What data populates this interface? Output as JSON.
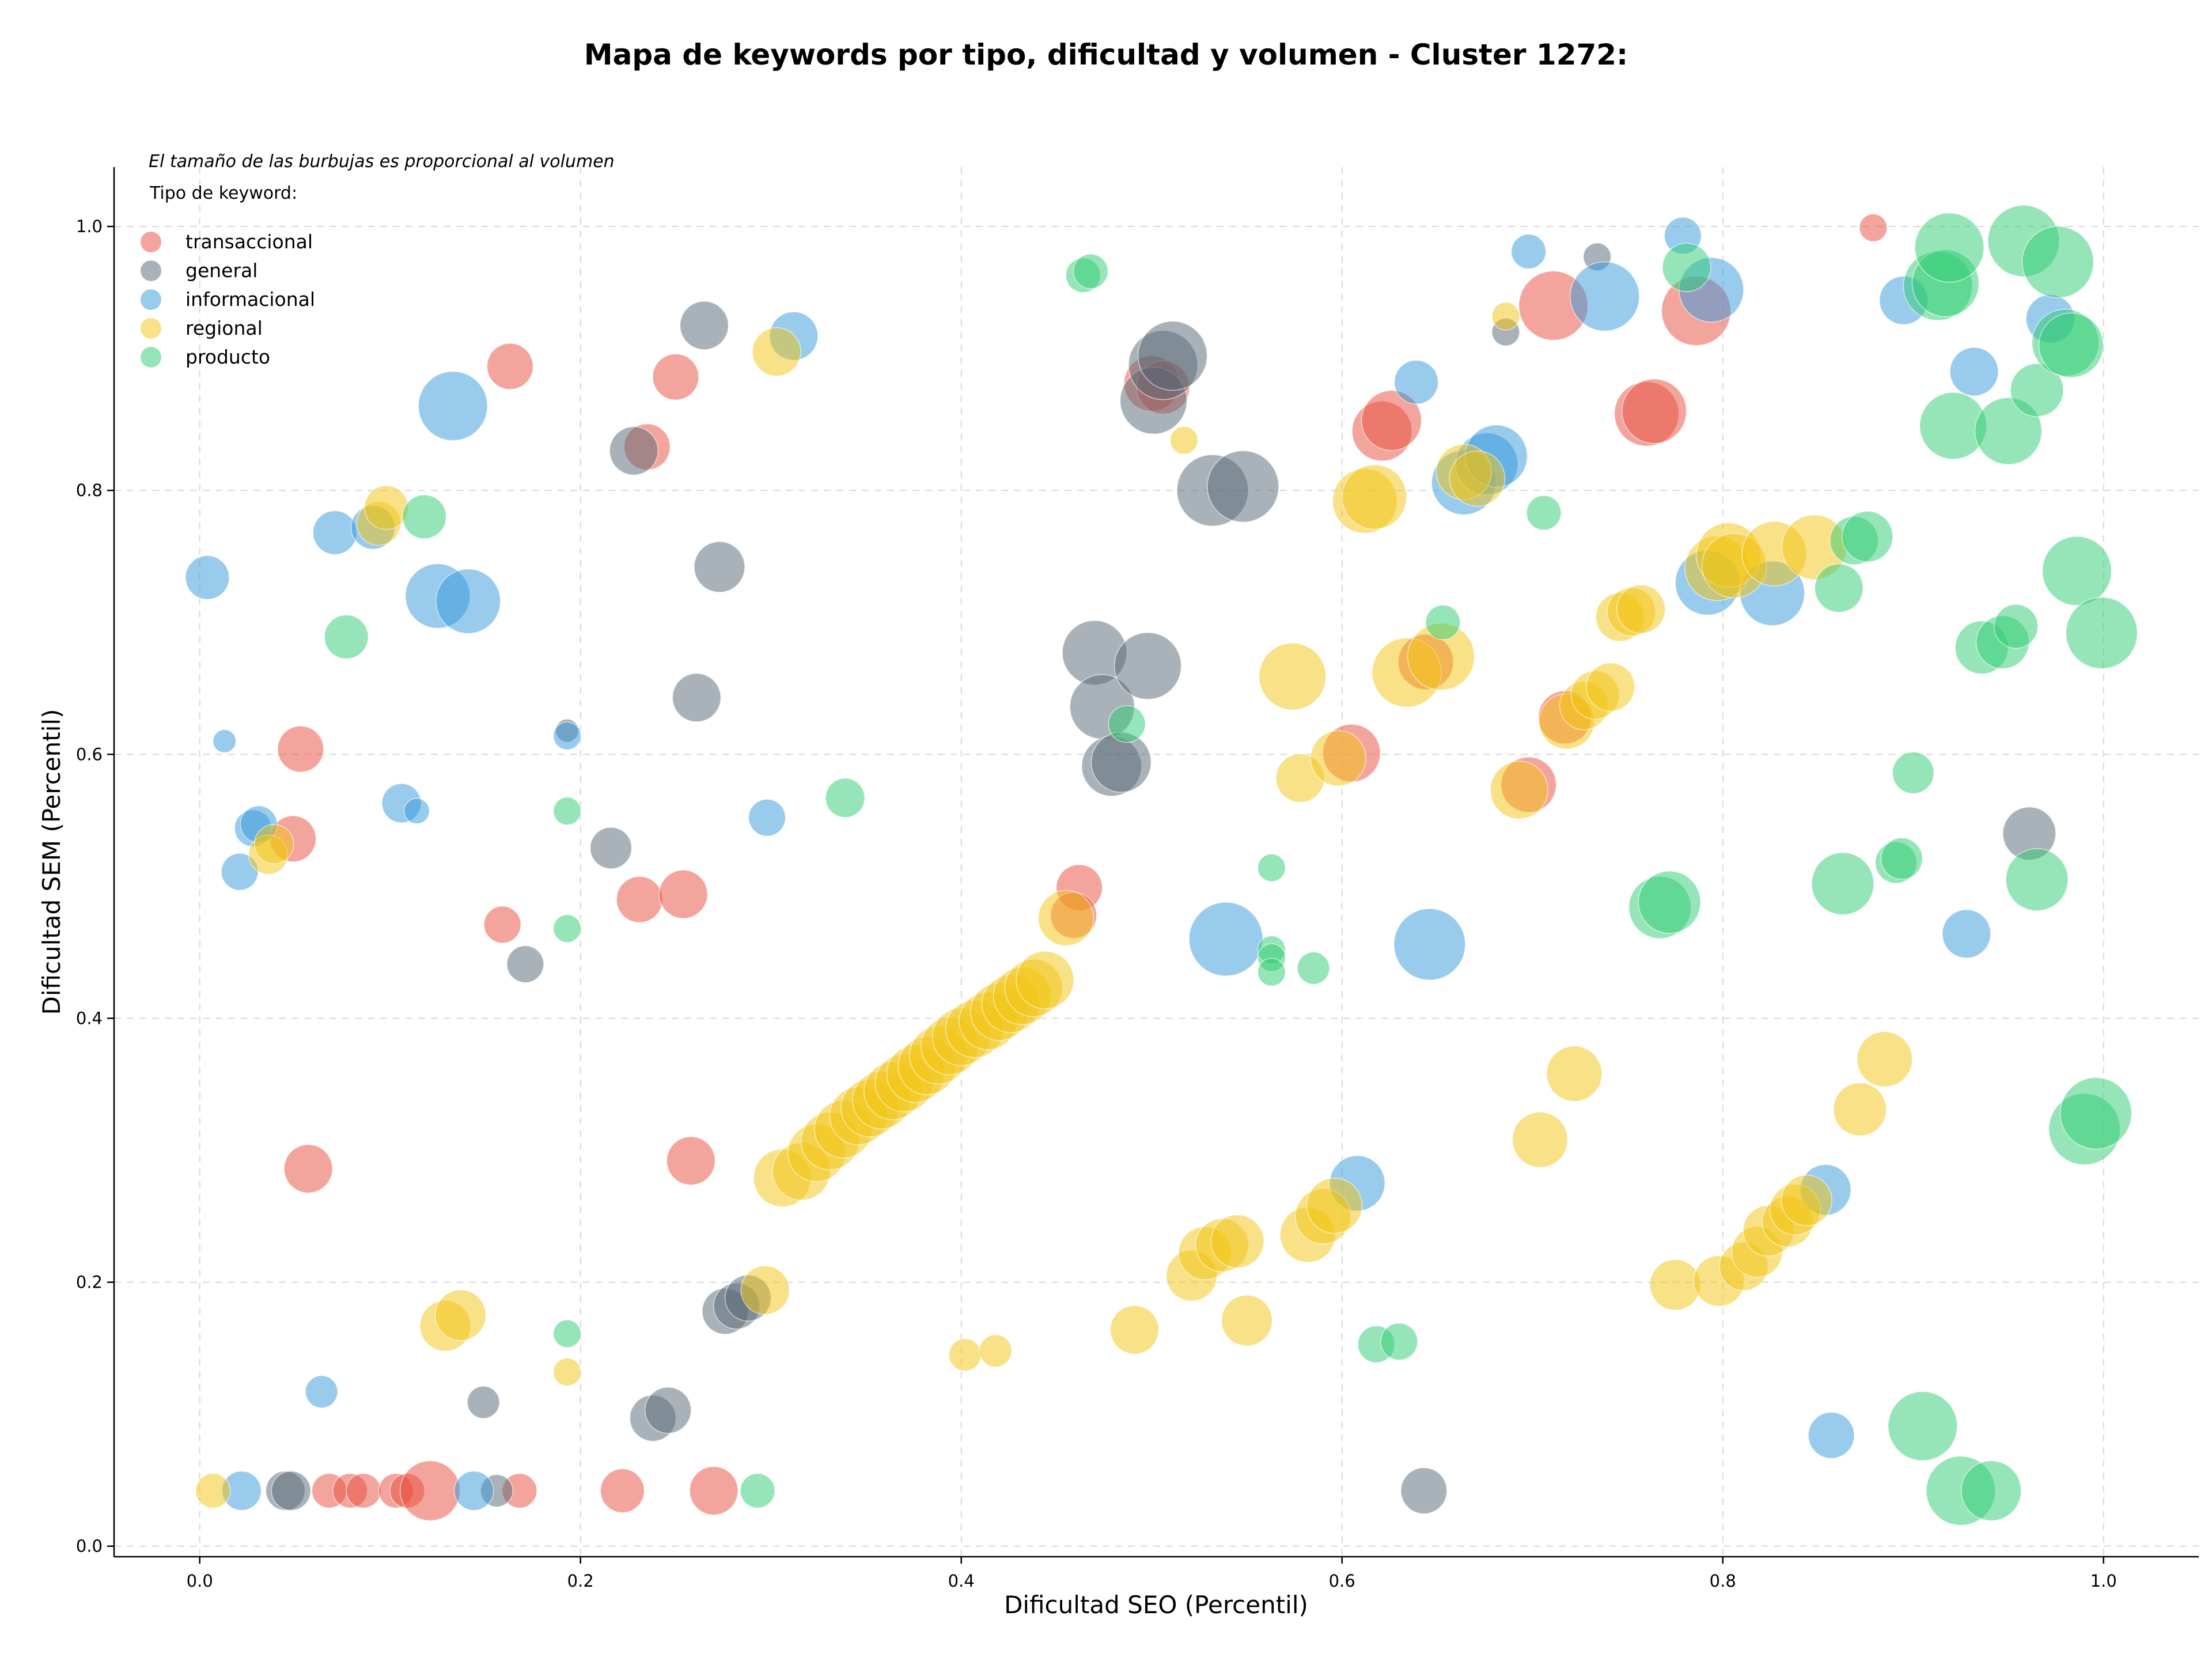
{
  "chart_data": {
    "type": "scatter",
    "title": "Mapa de keywords por tipo, dificultad y volumen - Cluster 1272:",
    "xlabel": "Dificultad SEO (Percentil)",
    "ylabel": "Dificultad SEM (Percentil)",
    "xlim": [
      -0.045,
      1.05
    ],
    "ylim": [
      -0.008,
      1.045
    ],
    "xticks": [
      "0.0",
      "0.2",
      "0.4",
      "0.6",
      "0.8",
      "1.0"
    ],
    "yticks": [
      "0.0",
      "0.2",
      "0.4",
      "0.6",
      "0.8",
      "1.0"
    ],
    "grid": true,
    "note": "El tamaño de las burbujas es proporcional al volumen",
    "legend": {
      "title": "Tipo de keyword:",
      "placement": "top-left"
    },
    "series": [
      {
        "name": "transaccional",
        "color": "#e74c3c",
        "points": [
          [
            0.163,
            0.894,
            40
          ],
          [
            0.235,
            0.833,
            40
          ],
          [
            0.25,
            0.886,
            40
          ],
          [
            0.053,
            0.604,
            40
          ],
          [
            0.049,
            0.536,
            40
          ],
          [
            0.159,
            0.471,
            32
          ],
          [
            0.231,
            0.49,
            40
          ],
          [
            0.254,
            0.494,
            42
          ],
          [
            0.057,
            0.286,
            42
          ],
          [
            0.258,
            0.292,
            42
          ],
          [
            0.068,
            0.042,
            30
          ],
          [
            0.079,
            0.042,
            30
          ],
          [
            0.086,
            0.042,
            30
          ],
          [
            0.103,
            0.042,
            30
          ],
          [
            0.109,
            0.042,
            30
          ],
          [
            0.121,
            0.042,
            52
          ],
          [
            0.168,
            0.042,
            30
          ],
          [
            0.222,
            0.042,
            38
          ],
          [
            0.27,
            0.042,
            42
          ],
          [
            0.462,
            0.499,
            40
          ],
          [
            0.459,
            0.478,
            40
          ],
          [
            0.5,
            0.881,
            48
          ],
          [
            0.506,
            0.878,
            46
          ],
          [
            0.621,
            0.845,
            52
          ],
          [
            0.626,
            0.853,
            52
          ],
          [
            0.605,
            0.601,
            50
          ],
          [
            0.644,
            0.67,
            48
          ],
          [
            0.698,
            0.577,
            48
          ],
          [
            0.711,
            0.94,
            60
          ],
          [
            0.717,
            0.628,
            46
          ],
          [
            0.76,
            0.858,
            56
          ],
          [
            0.764,
            0.86,
            56
          ],
          [
            0.786,
            0.936,
            60
          ],
          [
            0.879,
            0.999,
            24
          ]
        ]
      },
      {
        "name": "general",
        "color": "#566573",
        "points": [
          [
            0.265,
            0.925,
            42
          ],
          [
            0.228,
            0.83,
            42
          ],
          [
            0.273,
            0.742,
            44
          ],
          [
            0.261,
            0.643,
            42
          ],
          [
            0.193,
            0.618,
            20
          ],
          [
            0.216,
            0.529,
            36
          ],
          [
            0.171,
            0.441,
            32
          ],
          [
            0.045,
            0.042,
            34
          ],
          [
            0.048,
            0.042,
            34
          ],
          [
            0.149,
            0.109,
            28
          ],
          [
            0.156,
            0.042,
            28
          ],
          [
            0.238,
            0.097,
            40
          ],
          [
            0.246,
            0.103,
            40
          ],
          [
            0.276,
            0.178,
            40
          ],
          [
            0.282,
            0.182,
            40
          ],
          [
            0.288,
            0.188,
            40
          ],
          [
            0.47,
            0.677,
            56
          ],
          [
            0.474,
            0.636,
            56
          ],
          [
            0.479,
            0.591,
            52
          ],
          [
            0.484,
            0.594,
            52
          ],
          [
            0.498,
            0.667,
            58
          ],
          [
            0.501,
            0.868,
            58
          ],
          [
            0.506,
            0.895,
            60
          ],
          [
            0.511,
            0.902,
            60
          ],
          [
            0.532,
            0.8,
            62
          ],
          [
            0.548,
            0.803,
            62
          ],
          [
            0.643,
            0.042,
            40
          ],
          [
            0.686,
            0.92,
            24
          ],
          [
            0.734,
            0.977,
            24
          ],
          [
            0.961,
            0.54,
            46
          ]
        ]
      },
      {
        "name": "informacional",
        "color": "#3498db",
        "points": [
          [
            0.004,
            0.734,
            38
          ],
          [
            0.013,
            0.61,
            20
          ],
          [
            0.021,
            0.511,
            32
          ],
          [
            0.028,
            0.544,
            32
          ],
          [
            0.031,
            0.547,
            32
          ],
          [
            0.064,
            0.117,
            28
          ],
          [
            0.071,
            0.768,
            38
          ],
          [
            0.091,
            0.772,
            38
          ],
          [
            0.106,
            0.563,
            34
          ],
          [
            0.114,
            0.557,
            22
          ],
          [
            0.125,
            0.72,
            56
          ],
          [
            0.133,
            0.864,
            60
          ],
          [
            0.141,
            0.716,
            56
          ],
          [
            0.193,
            0.614,
            24
          ],
          [
            0.022,
            0.042,
            34
          ],
          [
            0.144,
            0.042,
            34
          ],
          [
            0.298,
            0.552,
            32
          ],
          [
            0.312,
            0.917,
            42
          ],
          [
            0.539,
            0.46,
            64
          ],
          [
            0.608,
            0.275,
            48
          ],
          [
            0.639,
            0.882,
            38
          ],
          [
            0.646,
            0.456,
            62
          ],
          [
            0.664,
            0.806,
            56
          ],
          [
            0.676,
            0.82,
            54
          ],
          [
            0.681,
            0.826,
            54
          ],
          [
            0.698,
            0.981,
            30
          ],
          [
            0.738,
            0.947,
            60
          ],
          [
            0.779,
            0.993,
            32
          ],
          [
            0.792,
            0.73,
            56
          ],
          [
            0.794,
            0.952,
            56
          ],
          [
            0.826,
            0.722,
            56
          ],
          [
            0.854,
            0.27,
            44
          ],
          [
            0.857,
            0.084,
            40
          ],
          [
            0.895,
            0.944,
            42
          ],
          [
            0.928,
            0.464,
            42
          ],
          [
            0.932,
            0.89,
            42
          ],
          [
            0.972,
            0.93,
            42
          ]
        ]
      },
      {
        "name": "regional",
        "color": "#f1c40f",
        "points": [
          [
            0.007,
            0.042,
            30
          ],
          [
            0.036,
            0.524,
            34
          ],
          [
            0.039,
            0.532,
            34
          ],
          [
            0.094,
            0.775,
            38
          ],
          [
            0.098,
            0.787,
            38
          ],
          [
            0.129,
            0.167,
            44
          ],
          [
            0.137,
            0.175,
            44
          ],
          [
            0.193,
            0.132,
            24
          ],
          [
            0.297,
            0.194,
            42
          ],
          [
            0.303,
            0.905,
            42
          ],
          [
            0.306,
            0.279,
            50
          ],
          [
            0.316,
            0.284,
            50
          ],
          [
            0.324,
            0.298,
            50
          ],
          [
            0.331,
            0.307,
            50
          ],
          [
            0.338,
            0.316,
            50
          ],
          [
            0.346,
            0.326,
            50
          ],
          [
            0.352,
            0.332,
            50
          ],
          [
            0.358,
            0.338,
            50
          ],
          [
            0.364,
            0.345,
            50
          ],
          [
            0.37,
            0.351,
            50
          ],
          [
            0.376,
            0.358,
            50
          ],
          [
            0.382,
            0.364,
            50
          ],
          [
            0.388,
            0.372,
            50
          ],
          [
            0.394,
            0.379,
            50
          ],
          [
            0.4,
            0.386,
            50
          ],
          [
            0.407,
            0.392,
            50
          ],
          [
            0.414,
            0.398,
            50
          ],
          [
            0.42,
            0.405,
            50
          ],
          [
            0.426,
            0.411,
            50
          ],
          [
            0.432,
            0.417,
            50
          ],
          [
            0.438,
            0.423,
            50
          ],
          [
            0.444,
            0.429,
            50
          ],
          [
            0.402,
            0.145,
            28
          ],
          [
            0.418,
            0.148,
            28
          ],
          [
            0.455,
            0.476,
            48
          ],
          [
            0.491,
            0.164,
            42
          ],
          [
            0.517,
            0.838,
            24
          ],
          [
            0.521,
            0.205,
            44
          ],
          [
            0.528,
            0.222,
            46
          ],
          [
            0.537,
            0.228,
            46
          ],
          [
            0.545,
            0.231,
            46
          ],
          [
            0.55,
            0.171,
            44
          ],
          [
            0.574,
            0.659,
            58
          ],
          [
            0.578,
            0.582,
            42
          ],
          [
            0.582,
            0.236,
            48
          ],
          [
            0.59,
            0.25,
            48
          ],
          [
            0.596,
            0.258,
            48
          ],
          [
            0.598,
            0.597,
            48
          ],
          [
            0.612,
            0.792,
            56
          ],
          [
            0.617,
            0.795,
            56
          ],
          [
            0.634,
            0.662,
            60
          ],
          [
            0.652,
            0.674,
            58
          ],
          [
            0.664,
            0.814,
            48
          ],
          [
            0.671,
            0.809,
            48
          ],
          [
            0.686,
            0.932,
            24
          ],
          [
            0.693,
            0.573,
            50
          ],
          [
            0.704,
            0.308,
            48
          ],
          [
            0.718,
            0.625,
            48
          ],
          [
            0.722,
            0.358,
            48
          ],
          [
            0.727,
            0.637,
            42
          ],
          [
            0.733,
            0.645,
            42
          ],
          [
            0.741,
            0.651,
            42
          ],
          [
            0.746,
            0.704,
            42
          ],
          [
            0.752,
            0.708,
            42
          ],
          [
            0.757,
            0.71,
            42
          ],
          [
            0.775,
            0.198,
            44
          ],
          [
            0.797,
            0.741,
            56
          ],
          [
            0.803,
            0.751,
            56
          ],
          [
            0.806,
            0.743,
            56
          ],
          [
            0.798,
            0.201,
            44
          ],
          [
            0.811,
            0.212,
            42
          ],
          [
            0.818,
            0.223,
            44
          ],
          [
            0.824,
            0.239,
            44
          ],
          [
            0.827,
            0.752,
            56
          ],
          [
            0.834,
            0.246,
            44
          ],
          [
            0.838,
            0.255,
            44
          ],
          [
            0.844,
            0.262,
            44
          ],
          [
            0.848,
            0.757,
            56
          ],
          [
            0.872,
            0.331,
            46
          ],
          [
            0.885,
            0.369,
            48
          ]
        ]
      },
      {
        "name": "producto",
        "color": "#2ecc71",
        "points": [
          [
            0.077,
            0.689,
            38
          ],
          [
            0.118,
            0.78,
            38
          ],
          [
            0.193,
            0.557,
            24
          ],
          [
            0.193,
            0.468,
            24
          ],
          [
            0.193,
            0.161,
            24
          ],
          [
            0.293,
            0.042,
            30
          ],
          [
            0.339,
            0.567,
            34
          ],
          [
            0.464,
            0.963,
            30
          ],
          [
            0.468,
            0.966,
            30
          ],
          [
            0.487,
            0.623,
            32
          ],
          [
            0.563,
            0.514,
            24
          ],
          [
            0.563,
            0.452,
            24
          ],
          [
            0.563,
            0.446,
            24
          ],
          [
            0.563,
            0.435,
            24
          ],
          [
            0.585,
            0.438,
            28
          ],
          [
            0.618,
            0.153,
            32
          ],
          [
            0.63,
            0.155,
            32
          ],
          [
            0.653,
            0.7,
            30
          ],
          [
            0.706,
            0.783,
            30
          ],
          [
            0.767,
            0.484,
            54
          ],
          [
            0.772,
            0.488,
            54
          ],
          [
            0.781,
            0.969,
            42
          ],
          [
            0.861,
            0.726,
            42
          ],
          [
            0.863,
            0.502,
            54
          ],
          [
            0.869,
            0.762,
            42
          ],
          [
            0.876,
            0.765,
            44
          ],
          [
            0.891,
            0.518,
            36
          ],
          [
            0.894,
            0.521,
            36
          ],
          [
            0.9,
            0.586,
            36
          ],
          [
            0.905,
            0.091,
            60
          ],
          [
            0.913,
            0.955,
            60
          ],
          [
            0.917,
            0.957,
            58
          ],
          [
            0.919,
            0.984,
            60
          ],
          [
            0.921,
            0.849,
            58
          ],
          [
            0.925,
            0.042,
            60
          ],
          [
            0.936,
            0.681,
            46
          ],
          [
            0.941,
            0.042,
            52
          ],
          [
            0.947,
            0.685,
            46
          ],
          [
            0.95,
            0.845,
            58
          ],
          [
            0.954,
            0.697,
            38
          ],
          [
            0.958,
            0.989,
            62
          ],
          [
            0.965,
            0.505,
            54
          ],
          [
            0.965,
            0.876,
            46
          ],
          [
            0.976,
            0.973,
            62
          ],
          [
            0.98,
            0.912,
            58
          ],
          [
            0.983,
            0.91,
            56
          ],
          [
            0.986,
            0.739,
            60
          ],
          [
            0.99,
            0.316,
            62
          ],
          [
            0.996,
            0.328,
            62
          ],
          [
            0.999,
            0.692,
            62
          ]
        ]
      }
    ]
  }
}
